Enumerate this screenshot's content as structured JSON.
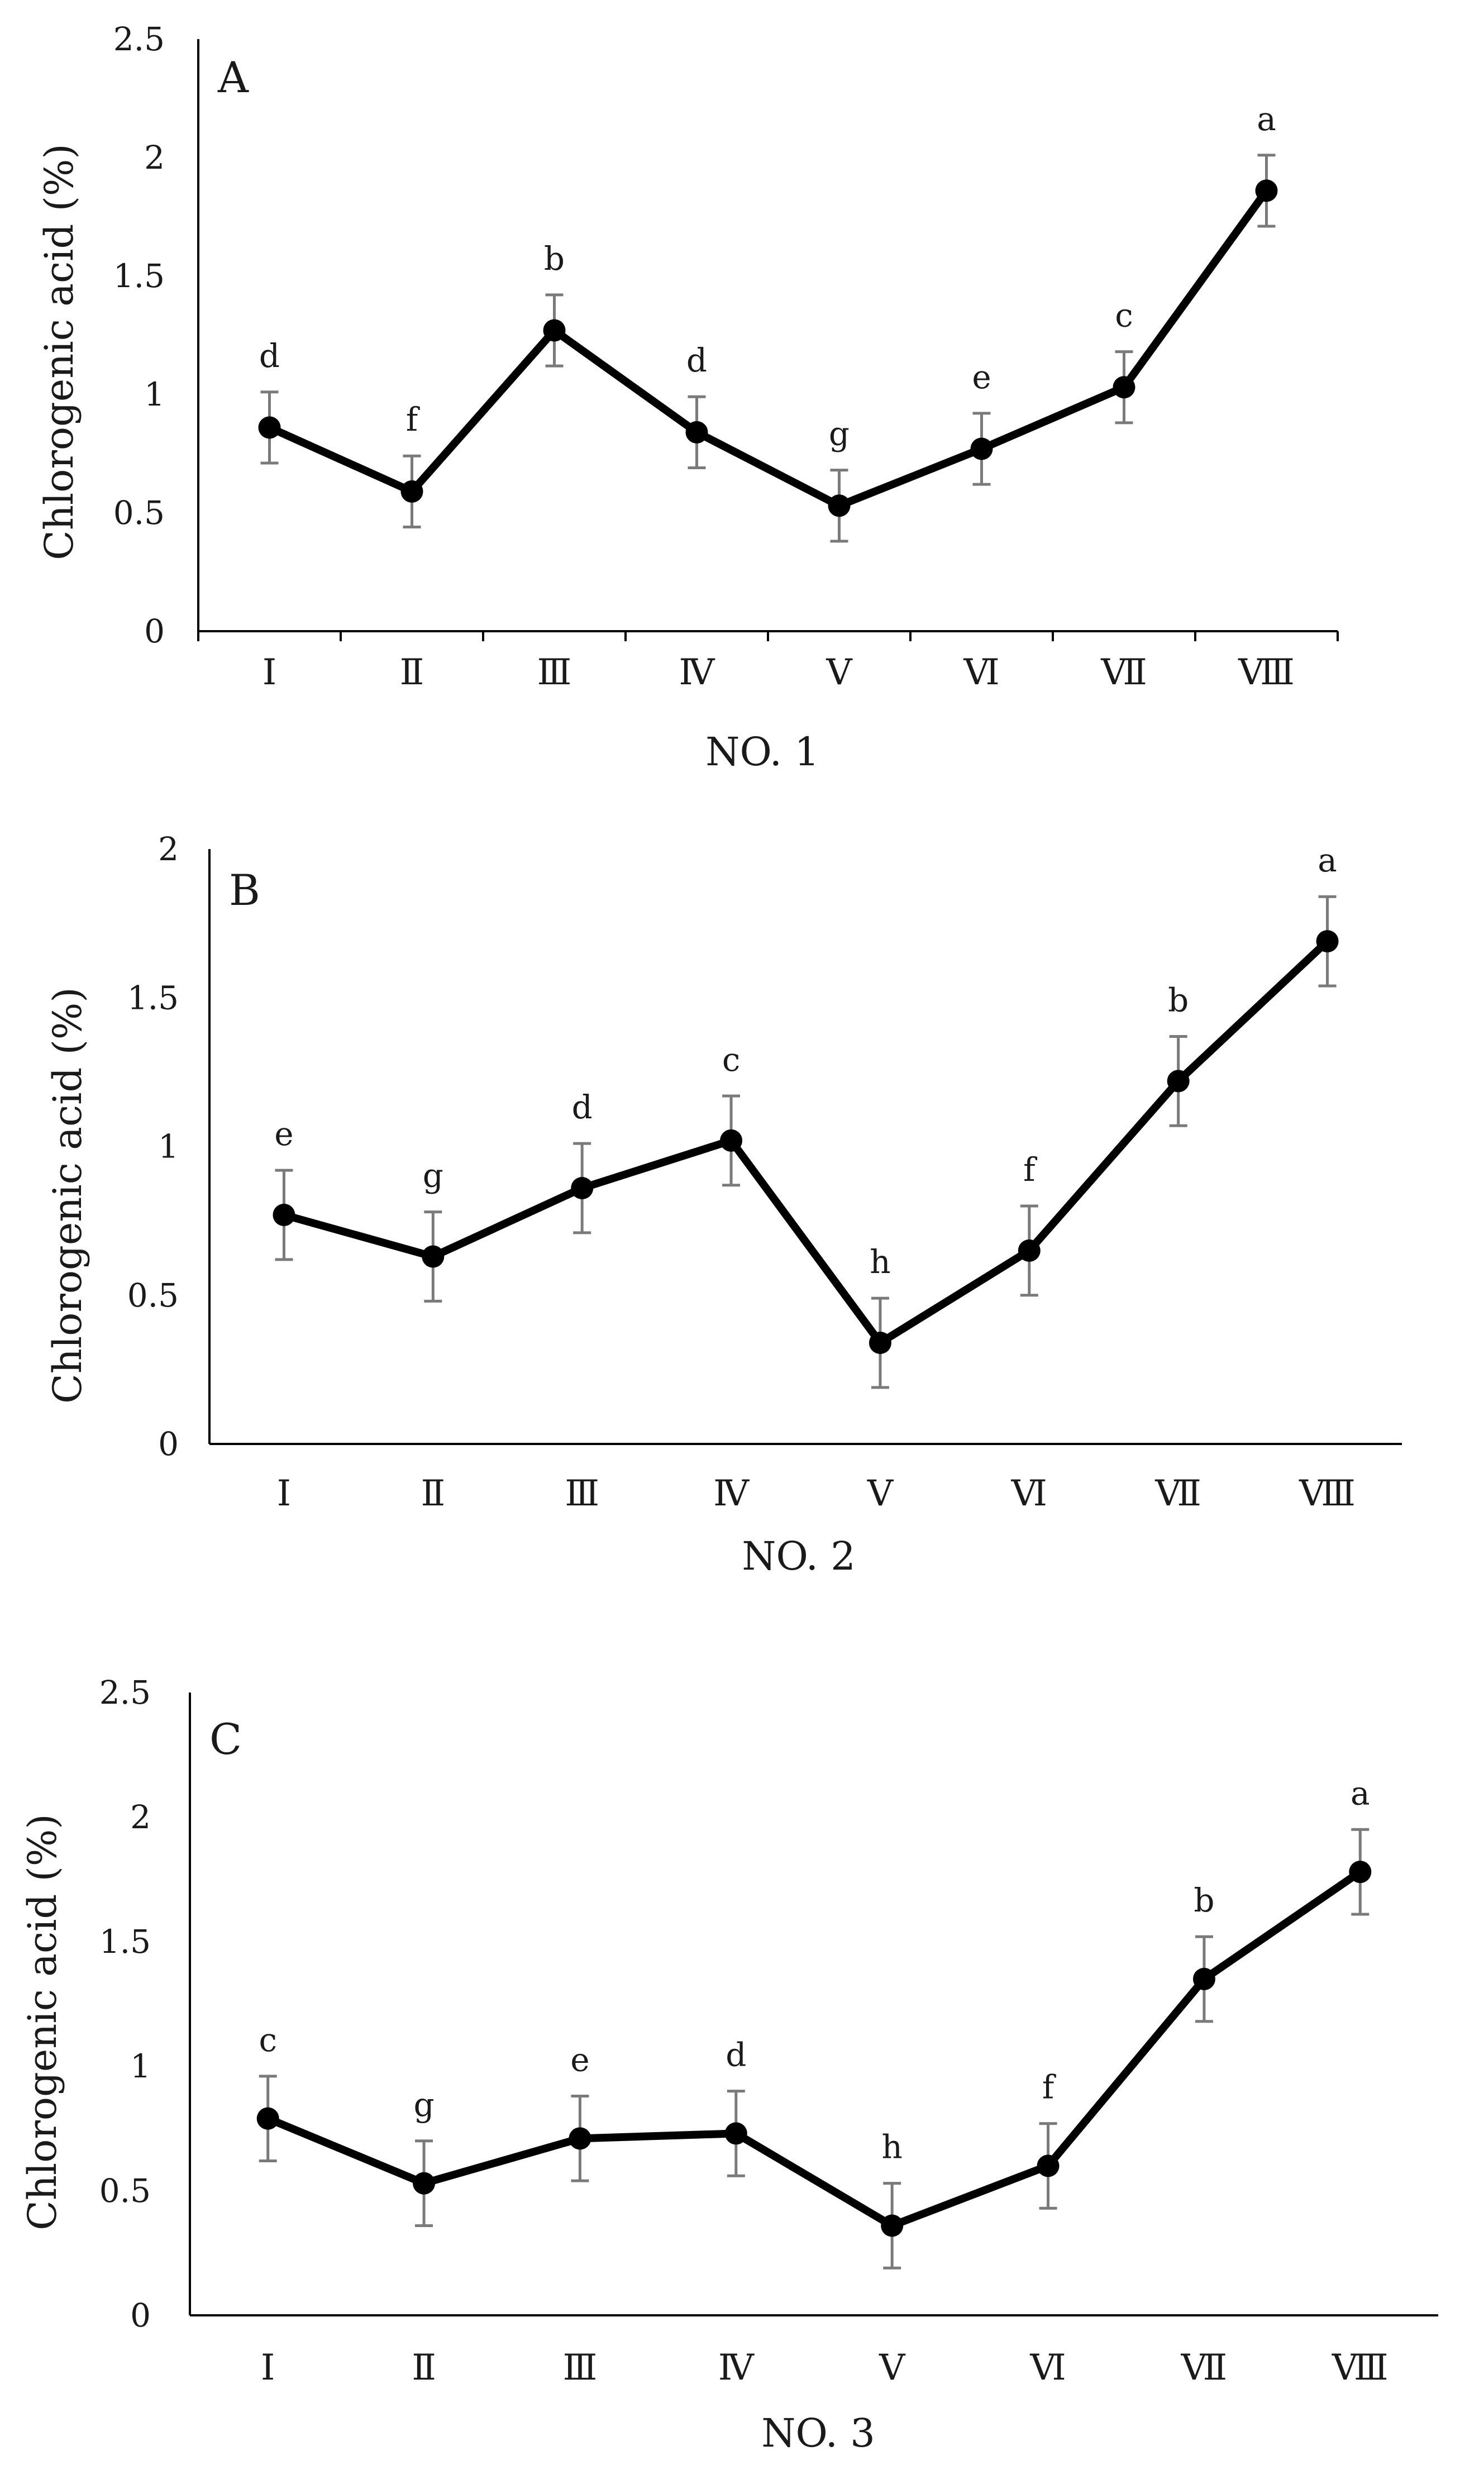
{
  "chart_data": [
    {
      "type": "line",
      "panel": "A",
      "xlabel": "NO. 1",
      "ylabel": "Chlorogenic acid (%)",
      "ylim": [
        0,
        2.5
      ],
      "yticks": [
        "0",
        "0.5",
        "1",
        "1.5",
        "2",
        "2.5"
      ],
      "categories": [
        "Ⅰ",
        "Ⅱ",
        "Ⅲ",
        "Ⅳ",
        "Ⅴ",
        "Ⅵ",
        "Ⅶ",
        "Ⅷ"
      ],
      "values": [
        0.86,
        0.59,
        1.27,
        0.84,
        0.53,
        0.77,
        1.03,
        1.86
      ],
      "errors": [
        0.15,
        0.15,
        0.15,
        0.15,
        0.15,
        0.15,
        0.15,
        0.15
      ],
      "letters": [
        "d",
        "f",
        "b",
        "d",
        "g",
        "e",
        "c",
        "a"
      ]
    },
    {
      "type": "line",
      "panel": "B",
      "xlabel": "NO. 2",
      "ylabel": "Chlorogenic acid (%)",
      "ylim": [
        0,
        2
      ],
      "yticks": [
        "0",
        "0.5",
        "1",
        "1.5",
        "2"
      ],
      "categories": [
        "Ⅰ",
        "Ⅱ",
        "Ⅲ",
        "Ⅳ",
        "Ⅴ",
        "Ⅵ",
        "Ⅶ",
        "Ⅷ"
      ],
      "values": [
        0.77,
        0.63,
        0.86,
        1.02,
        0.34,
        0.65,
        1.22,
        1.69
      ],
      "errors": [
        0.15,
        0.15,
        0.15,
        0.15,
        0.15,
        0.15,
        0.15,
        0.15
      ],
      "letters": [
        "e",
        "g",
        "d",
        "c",
        "h",
        "f",
        "b",
        "a"
      ]
    },
    {
      "type": "line",
      "panel": "C",
      "xlabel": "NO. 3",
      "ylabel": "Chlorogenic acid (%)",
      "ylim": [
        0,
        2.5
      ],
      "yticks": [
        "0",
        "0.5",
        "1",
        "1.5",
        "2",
        "2.5"
      ],
      "categories": [
        "Ⅰ",
        "Ⅱ",
        "Ⅲ",
        "Ⅳ",
        "Ⅴ",
        "Ⅵ",
        "Ⅶ",
        "Ⅷ"
      ],
      "values": [
        0.79,
        0.53,
        0.71,
        0.73,
        0.36,
        0.6,
        1.35,
        1.78
      ],
      "errors": [
        0.17,
        0.17,
        0.17,
        0.17,
        0.17,
        0.17,
        0.17,
        0.17
      ],
      "letters": [
        "c",
        "g",
        "e",
        "d",
        "h",
        "f",
        "b",
        "a"
      ]
    }
  ]
}
